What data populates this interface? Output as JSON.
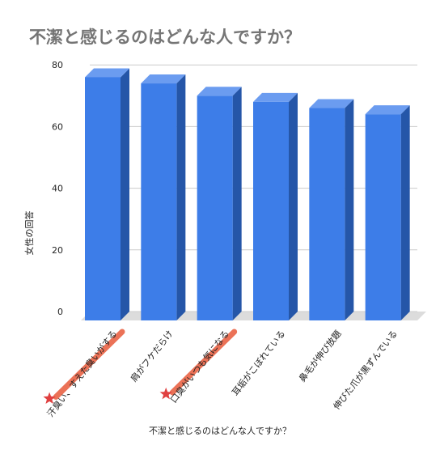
{
  "chart_data": {
    "type": "bar",
    "title": "不潔と感じるのはどんな人ですか？",
    "xlabel": "不潔と感じるのはどんな人ですか？",
    "ylabel": "女性の回答",
    "categories": [
      "汗臭い、すえた臭いがする",
      "肩がフケだらけ",
      "口臭がいつも気になる",
      "耳垢がこぼれている",
      "鼻毛が伸び放題",
      "伸びた爪が黒ずんでいる"
    ],
    "values": [
      76,
      74,
      70,
      68,
      66,
      64
    ],
    "yticks": [
      "0",
      "20",
      "40",
      "60",
      "80"
    ],
    "ylim": [
      0,
      80
    ],
    "grid": true,
    "style": "3d",
    "colors": {
      "front": "#3d7de8",
      "side": "#2556a8",
      "top": "#6b9cf0",
      "floor": "#dcdcdc",
      "grid": "#cccccc",
      "highlight": "#e85a3a",
      "star": "#e04040"
    },
    "highlighted_categories": [
      0,
      2
    ]
  }
}
